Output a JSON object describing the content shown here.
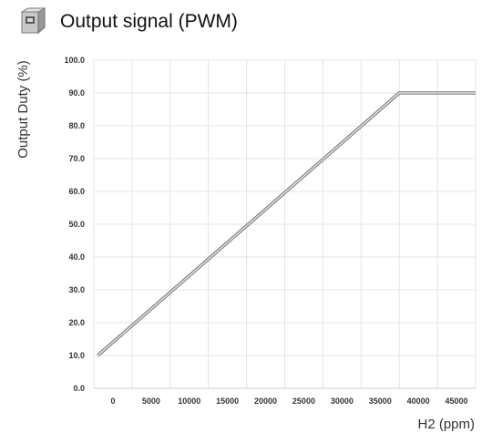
{
  "header": {
    "title": "Output signal (PWM)",
    "logo_icon": "sensor-module-icon"
  },
  "chart_data": {
    "type": "line",
    "title": "Output signal (PWM)",
    "xlabel": "H2 (ppm)",
    "ylabel": "Output Duty (%)",
    "xlim": [
      -2500,
      47500
    ],
    "ylim": [
      0,
      100
    ],
    "x_ticks": [
      0,
      5000,
      10000,
      15000,
      20000,
      25000,
      30000,
      35000,
      40000,
      45000
    ],
    "x_tick_labels": [
      "0",
      "5000",
      "10000",
      "15000",
      "20000",
      "25000",
      "30000",
      "35000",
      "40000",
      "45000"
    ],
    "y_ticks": [
      0,
      10,
      20,
      30,
      40,
      50,
      60,
      70,
      80,
      90,
      100
    ],
    "y_tick_labels": [
      "0.0",
      "10.0",
      "20.0",
      "30.0",
      "40.0",
      "50.0",
      "60.0",
      "70.0",
      "80.0",
      "90.0",
      "100.0"
    ],
    "grid": true,
    "legend": "none",
    "series": [
      {
        "x": [
          -2000,
          37500,
          47500
        ],
        "y": [
          10,
          90,
          90
        ],
        "color": "#7f7f7f"
      }
    ]
  }
}
